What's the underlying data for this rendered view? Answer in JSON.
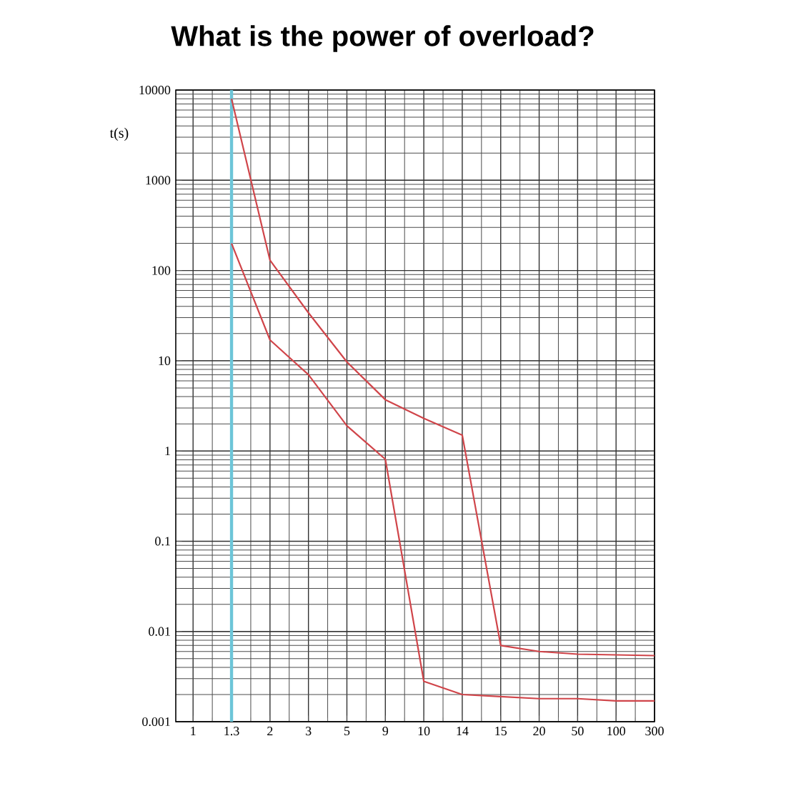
{
  "chart_data": {
    "type": "line",
    "title": "What is the power of overload?",
    "ylabel": "t(s)",
    "log": "y",
    "grid": true,
    "marker": "none",
    "line_style": "solid",
    "categories": [
      "1",
      "1.3",
      "2",
      "3",
      "5",
      "9",
      "10",
      "14",
      "15",
      "20",
      "50",
      "100",
      "300"
    ],
    "ylim": [
      0.001,
      10000
    ],
    "yticks": [
      0.001,
      0.01,
      0.1,
      1,
      10,
      100,
      1000,
      10000
    ],
    "ref_lines": [
      {
        "axis": "x",
        "value": "1.3",
        "color": "#6cc5d8"
      }
    ],
    "series": [
      {
        "color": "#d0454a",
        "values": [
          null,
          8000,
          130,
          34,
          9.7,
          3.7,
          2.3,
          1.5,
          0.007,
          0.006,
          0.0056,
          0.0055,
          0.0054
        ]
      },
      {
        "color": "#d0454a",
        "values": [
          null,
          200,
          17,
          7,
          1.9,
          0.81,
          0.0028,
          0.002,
          0.0019,
          0.0018,
          0.0018,
          0.0017,
          0.0017
        ]
      }
    ]
  }
}
